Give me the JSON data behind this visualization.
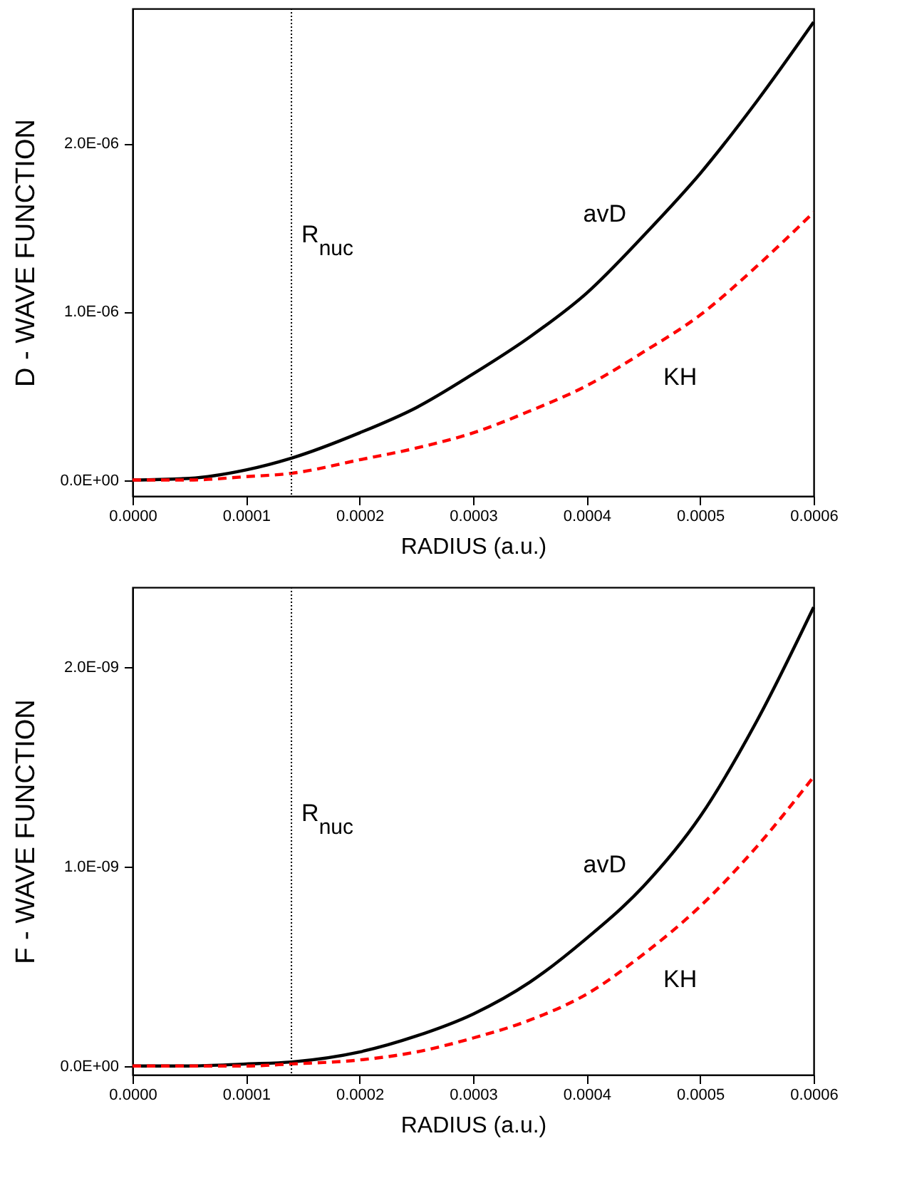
{
  "chart_data": [
    {
      "type": "line",
      "xlabel": "RADIUS (a.u.)",
      "ylabel": "D - WAVE FUNCTION",
      "x": [
        0,
        5e-05,
        0.0001,
        0.00014,
        0.0002,
        0.00025,
        0.0003,
        0.00035,
        0.0004,
        0.00045,
        0.0005,
        0.00055,
        0.0006
      ],
      "series": [
        {
          "name": "avD",
          "color": "#000000",
          "line_style": "solid",
          "values": [
            0,
            1e-08,
            6e-08,
            1.3e-07,
            2.8e-07,
            4.3e-07,
            6.3e-07,
            8.5e-07,
            1.11e-06,
            1.45e-06,
            1.82e-06,
            2.25e-06,
            2.72e-06
          ]
        },
        {
          "name": "KH",
          "color": "#ff0000",
          "line_style": "dashed",
          "values": [
            0,
            0,
            2e-08,
            4e-08,
            1.2e-07,
            1.9e-07,
            2.8e-07,
            4.1e-07,
            5.6e-07,
            7.6e-07,
            9.8e-07,
            1.27e-06,
            1.59e-06
          ]
        }
      ],
      "xlim": [
        0,
        0.0006
      ],
      "ylim": [
        -9.5e-08,
        2.8e-06
      ],
      "xticks": [
        {
          "value": 0,
          "label": "0.0000"
        },
        {
          "value": 0.0001,
          "label": "0.0001"
        },
        {
          "value": 0.0002,
          "label": "0.0002"
        },
        {
          "value": 0.0003,
          "label": "0.0003"
        },
        {
          "value": 0.0004,
          "label": "0.0004"
        },
        {
          "value": 0.0005,
          "label": "0.0005"
        },
        {
          "value": 0.0006,
          "label": "0.0006"
        }
      ],
      "yticks": [
        {
          "value": 0,
          "label": "0.0E+00"
        },
        {
          "value": 1e-06,
          "label": "1.0E-06"
        },
        {
          "value": 2e-06,
          "label": "2.0E-06"
        }
      ],
      "ref_lines": [
        {
          "axis": "x",
          "value": 0.00014,
          "label": "R$_{nuc}$",
          "color": "#000000",
          "line_style": "dotted"
        }
      ],
      "grid": false
    },
    {
      "type": "line",
      "xlabel": "RADIUS (a.u.)",
      "ylabel": "F - WAVE FUNCTION",
      "x": [
        0,
        5e-05,
        0.0001,
        0.00014,
        0.0002,
        0.00025,
        0.0003,
        0.00035,
        0.0004,
        0.00045,
        0.0005,
        0.00055,
        0.0006
      ],
      "series": [
        {
          "name": "avD",
          "color": "#000000",
          "line_style": "solid",
          "values": [
            0,
            0,
            1e-11,
            2e-11,
            7e-11,
            1.5e-10,
            2.6e-10,
            4.2e-10,
            6.4e-10,
            9e-10,
            1.25e-09,
            1.73e-09,
            2.3e-09
          ]
        },
        {
          "name": "KH",
          "color": "#ff0000",
          "line_style": "dashed",
          "values": [
            0,
            0,
            0,
            1e-11,
            3e-11,
            7e-11,
            1.4e-10,
            2.3e-10,
            3.6e-10,
            5.6e-10,
            8e-10,
            1.1e-09,
            1.45e-09
          ]
        }
      ],
      "xlim": [
        0,
        0.0006
      ],
      "ylim": [
        -4.4e-11,
        2.4e-09
      ],
      "xticks": [
        {
          "value": 0,
          "label": "0.0000"
        },
        {
          "value": 0.0001,
          "label": "0.0001"
        },
        {
          "value": 0.0002,
          "label": "0.0002"
        },
        {
          "value": 0.0003,
          "label": "0.0003"
        },
        {
          "value": 0.0004,
          "label": "0.0004"
        },
        {
          "value": 0.0005,
          "label": "0.0005"
        },
        {
          "value": 0.0006,
          "label": "0.0006"
        }
      ],
      "yticks": [
        {
          "value": 0,
          "label": "0.0E+00"
        },
        {
          "value": 1e-09,
          "label": "1.0E-09"
        },
        {
          "value": 2e-09,
          "label": "2.0E-09"
        }
      ],
      "ref_lines": [
        {
          "axis": "x",
          "value": 0.00014,
          "label": "R$_{nuc}$",
          "color": "#000000",
          "line_style": "dotted"
        }
      ],
      "grid": false
    }
  ]
}
